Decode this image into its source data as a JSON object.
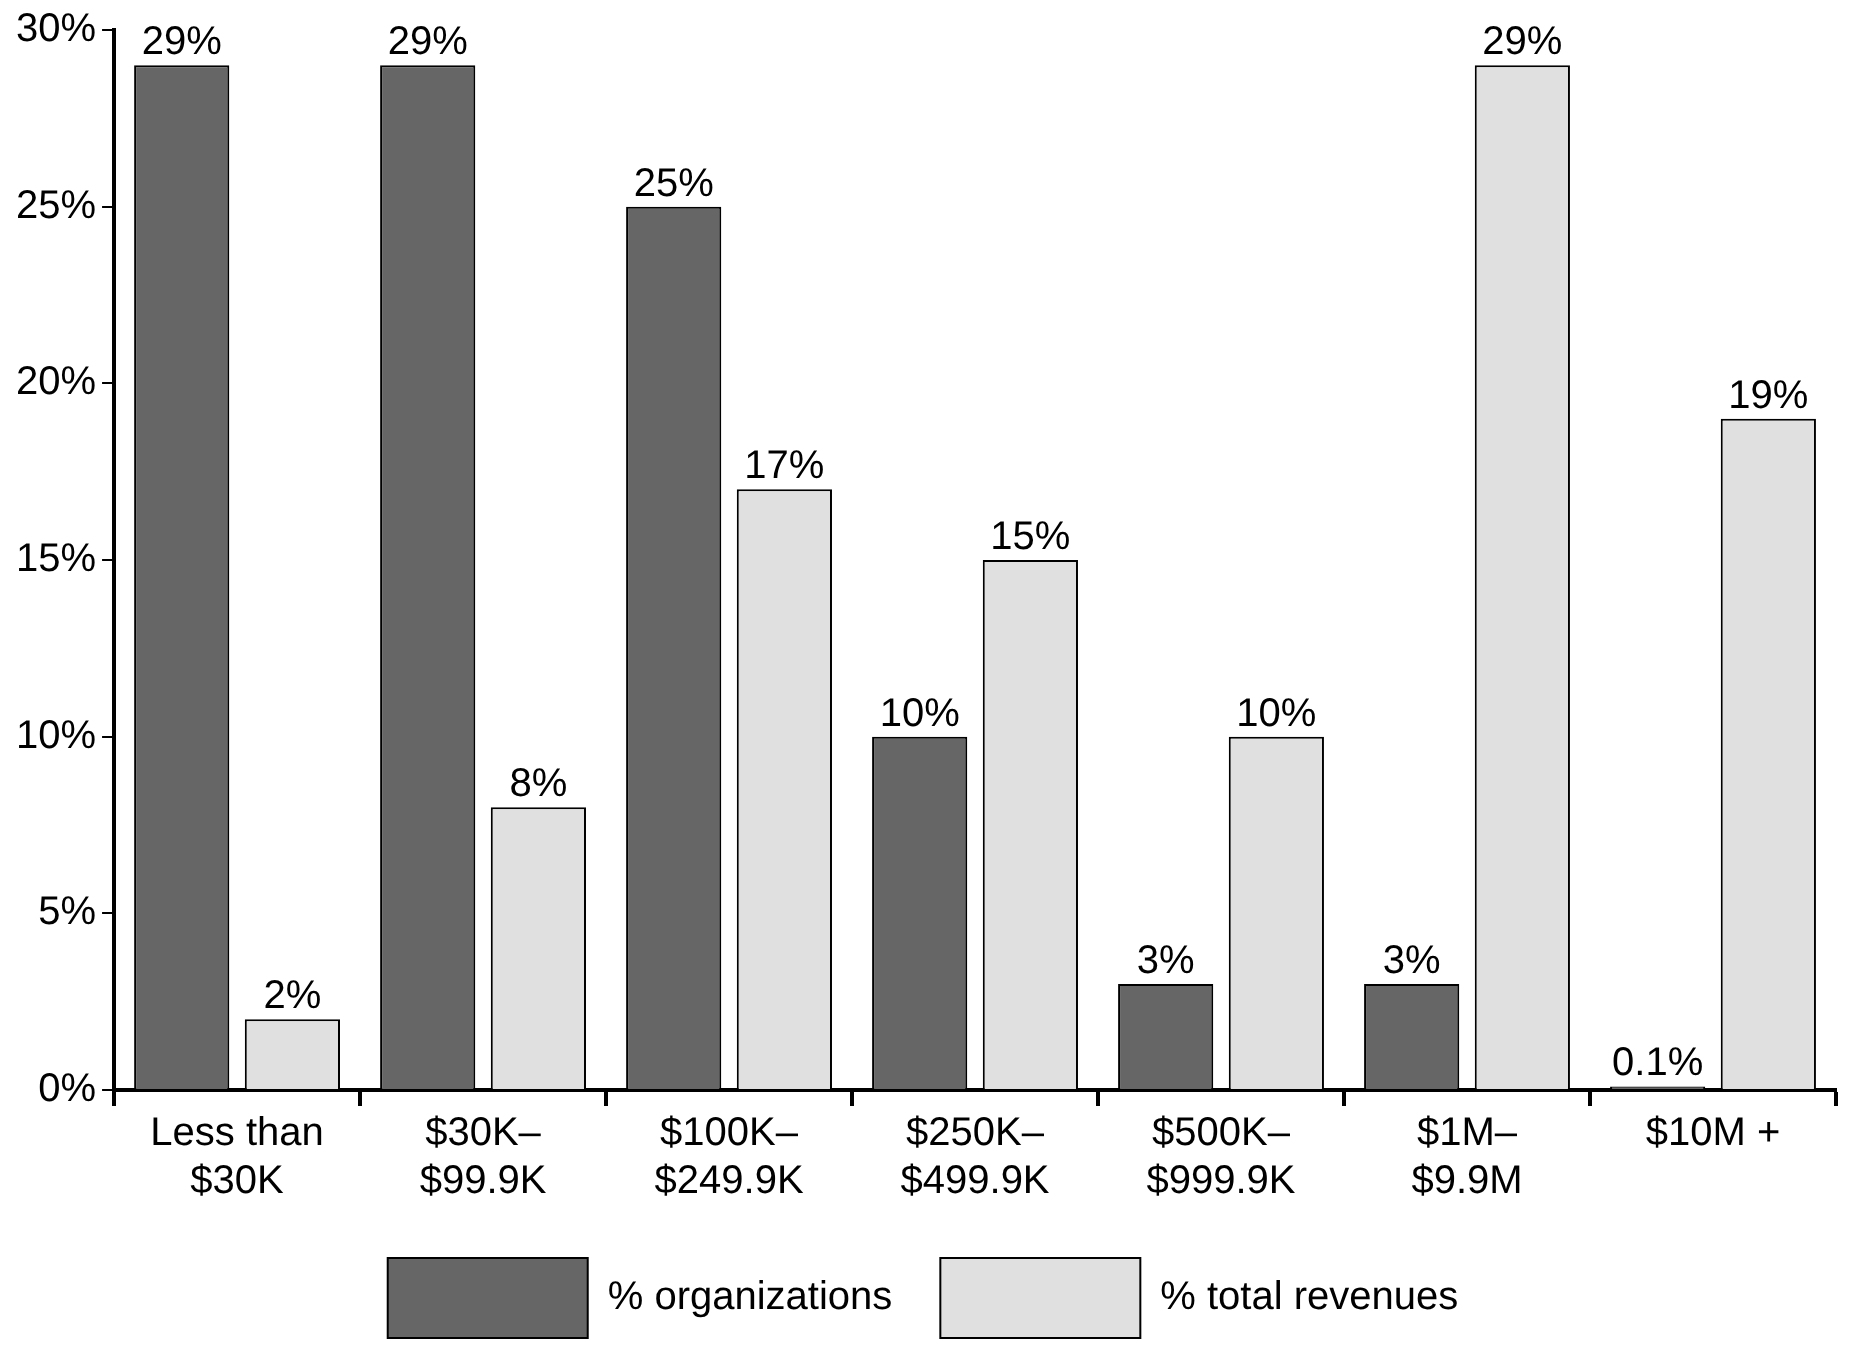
{
  "chart_data": {
    "type": "bar",
    "categories": [
      "Less than $30K",
      "$30K–$99.9K",
      "$100K–$249.9K",
      "$250K–$499.9K",
      "$500K–$999.9K",
      "$1M–$9.9M",
      "$10M +"
    ],
    "series": [
      {
        "name": "% organizations",
        "color": "#666666",
        "values": [
          29,
          29,
          25,
          10,
          3,
          3,
          0.1
        ],
        "value_labels": [
          "29%",
          "29%",
          "25%",
          "10%",
          "3%",
          "3%",
          "0.1%"
        ]
      },
      {
        "name": "% total revenues",
        "color": "#e0e0e0",
        "values": [
          2,
          8,
          17,
          15,
          10,
          29,
          19
        ],
        "value_labels": [
          "2%",
          "8%",
          "17%",
          "15%",
          "10%",
          "29%",
          "19%"
        ]
      }
    ],
    "ylim": [
      0,
      30
    ],
    "yticks": [
      {
        "value": 0,
        "label": "0%"
      },
      {
        "value": 5,
        "label": "5%"
      },
      {
        "value": 10,
        "label": "10%"
      },
      {
        "value": 15,
        "label": "15%"
      },
      {
        "value": 20,
        "label": "20%"
      },
      {
        "value": 25,
        "label": "25%"
      },
      {
        "value": 30,
        "label": "30%"
      }
    ],
    "grid": false,
    "legend": "bottom"
  }
}
